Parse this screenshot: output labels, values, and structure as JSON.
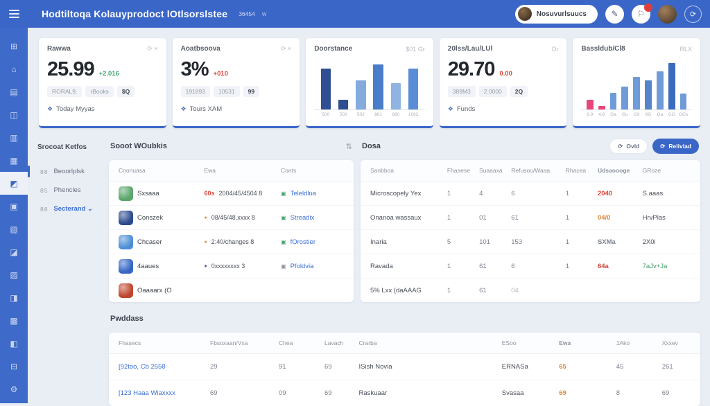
{
  "colors": {
    "accent": "#3a66c8",
    "red": "#d9453a",
    "orange": "#e08a3c",
    "green": "#43a36b",
    "purple": "#6a3f9e",
    "gray": "#8a909c",
    "link": "#3b6fd4",
    "muted": "#b3b9c3",
    "pink": "#e8457c"
  },
  "icons": {
    "refresh": "⟳",
    "pen": "✎",
    "flag": "⚐",
    "ring": "⟳",
    "sort": "⇅",
    "caret": "⌄",
    "foot": "❖",
    "btn_light": "⟳",
    "btn_primary": "⟳"
  },
  "topbar": {
    "title": "Hodtiltoqa Kolauyprodoct lOtlsorslstee",
    "meta": "36454",
    "meta2": "w",
    "user": "Nosuvurlsuucs"
  },
  "sidebar_icons": [
    {
      "id": "apps",
      "glyph": "⊞"
    },
    {
      "id": "home",
      "glyph": "⌂"
    },
    {
      "id": "layers",
      "glyph": "▤"
    },
    {
      "id": "users",
      "glyph": "◫"
    },
    {
      "id": "orders",
      "glyph": "▥"
    },
    {
      "id": "mail",
      "glyph": "▦"
    },
    {
      "id": "products",
      "glyph": "◩",
      "active": true
    },
    {
      "id": "analytics",
      "glyph": "▣"
    },
    {
      "id": "wallet",
      "glyph": "▧"
    },
    {
      "id": "network",
      "glyph": "◪"
    },
    {
      "id": "storage",
      "glyph": "▨"
    },
    {
      "id": "calendar",
      "glyph": "◨"
    },
    {
      "id": "reports",
      "glyph": "▩"
    },
    {
      "id": "tools",
      "glyph": "◧"
    },
    {
      "id": "archive",
      "glyph": "⊟"
    },
    {
      "id": "settings",
      "glyph": "⚙"
    }
  ],
  "submenu": {
    "header": "Srocoat Ketfos",
    "items": [
      {
        "icon": "grid",
        "code": "88",
        "label": "Beoorlplsk",
        "active": true
      },
      {
        "icon": "list",
        "code": "85",
        "label": "Phencles"
      },
      {
        "icon": "board",
        "code": "88",
        "label": "Secterand ⌄",
        "blue": true
      }
    ]
  },
  "stat_cards": {
    "card1": {
      "title": "Rawwa",
      "meta": "⟳ ×",
      "value": "25.99",
      "delta": "+2.016",
      "pills": [
        "RORAL9.",
        "rBooks",
        "$Q"
      ],
      "footer": "Today Myyas"
    },
    "card2": {
      "title": "Aoatbsoova",
      "meta": "⟳ ×",
      "value": "3%",
      "delta": "+010",
      "pills": [
        "191893",
        "10531",
        "99"
      ],
      "footer": "Tours XAM"
    },
    "card3": {
      "title": "Doorstance",
      "meta": "$01 Gr"
    },
    "card4": {
      "title": "20lss/Lau/LUl",
      "meta": "Dr",
      "value": "29.70",
      "delta": "0.00",
      "pills": [
        "389M3",
        "2.0000",
        "2Q"
      ],
      "footer": "Funds"
    },
    "card5": {
      "title": "Bassldub/Cl8",
      "meta": "RLX"
    }
  },
  "chart_data": [
    {
      "type": "bar",
      "title": "Doorstance",
      "categories": [
        "500",
        "500",
        "502",
        "861",
        "880",
        "1062"
      ],
      "values": [
        78,
        18,
        55,
        85,
        50,
        78
      ],
      "colors": [
        "#2e4f92",
        "#2e4f92",
        "#85abdd",
        "#4a7cc9",
        "#8fb4e2",
        "#5b8dd6"
      ],
      "xlabel": "",
      "ylabel": "",
      "ylim": [
        0,
        100
      ],
      "grid": false,
      "legend": false
    },
    {
      "type": "bar",
      "title": "Bassldub/Cl8",
      "categories": [
        "9.9",
        "4.8",
        "Ga",
        "Gu",
        "G9",
        "6G",
        "Ga",
        "GG",
        "GGs"
      ],
      "values": [
        18,
        7,
        32,
        44,
        62,
        55,
        72,
        88,
        30
      ],
      "colors": [
        "#e8457c",
        "#e8457c",
        "#6f9bd8",
        "#6f9bd8",
        "#6f9bd8",
        "#5584c8",
        "#6f9bd8",
        "#3a6bbd",
        "#6f9bd8"
      ],
      "xlabel": "",
      "ylabel": "",
      "ylim": [
        0,
        100
      ],
      "grid": false,
      "legend": false
    }
  ],
  "left_table": {
    "title": "Sooot WOubkis",
    "columns": [
      "Cnonuasa",
      "Ewa",
      "Conts"
    ],
    "rows": [
      {
        "icon": "#5aa56b",
        "name": "Sxsaaa",
        "prefix": "60s",
        "date": "2004/45/4504 8",
        "link": "Teleldlua",
        "link_icon": "green"
      },
      {
        "icon": "#2b4a8c",
        "name": "Conszek",
        "dot": "orange",
        "date": "08/45/48.xxxx 8",
        "link": "Streadix",
        "link_icon": "green"
      },
      {
        "icon": "#4d8fd6",
        "name": "Chcaser",
        "dot": "orange",
        "date": "2:40/changes 8",
        "link": "fOrostier",
        "link_icon": "green"
      },
      {
        "icon": "#3566c4",
        "name": "4aaues",
        "dot": "purple",
        "date": "0xxxxxxxx 3",
        "link": "Pfoldvia",
        "link_icon": "gray"
      },
      {
        "icon": "#c0452e",
        "name": "Oaaaarx (O",
        "date": "",
        "link": ""
      }
    ]
  },
  "right_table": {
    "title": "Dosa",
    "buttons": {
      "light": "Ovld",
      "primary": "Relivlad"
    },
    "columns": [
      "Sanbboa",
      "Fhaaese",
      "Suaaaxa",
      "Refusou/Waaa",
      "Rhacea",
      "Udsaoooge",
      "GRoze"
    ],
    "rows": [
      {
        "cells": [
          "Microscopely Yex",
          "1",
          "4",
          "6",
          "1",
          {
            "t": "2040",
            "c": "red"
          },
          "S.aaas"
        ]
      },
      {
        "cells": [
          "Onanoa wassaux",
          "1",
          "01",
          "61",
          "1",
          {
            "t": "04/0",
            "c": "orange"
          },
          "HrvPlas"
        ]
      },
      {
        "cells": [
          "Inaria",
          "5",
          "101",
          "153",
          "1",
          {
            "t": "SXMa",
            "c": ""
          },
          "2X0i"
        ]
      },
      {
        "cells": [
          "Ravada",
          "1",
          "61",
          "6",
          "1",
          {
            "t": "64a",
            "c": "red"
          },
          {
            "t": "7aJv+Ja",
            "c": "green"
          }
        ]
      },
      {
        "cells": [
          "5% Lxx (daAAAG",
          "1",
          "61",
          {
            "t": "04",
            "c": "muted"
          },
          "",
          "",
          ""
        ]
      }
    ]
  },
  "bottom_table": {
    "title": "Pwddass",
    "columns": [
      "Fhasecs",
      "Fbsoxaan/Vxa",
      "Chea",
      "Lavach",
      "Crarba",
      "ESoo",
      "Ewa",
      "1Ako",
      "Xxxev"
    ],
    "rows": [
      {
        "cells": [
          {
            "t": "[92too, Cb 2558",
            "c": "link"
          },
          "29",
          "91",
          "69",
          "ISish Novia",
          "ERNASa",
          {
            "t": "65",
            "c": "orange"
          },
          "45",
          "261"
        ]
      },
      {
        "cells": [
          {
            "t": "[123 Haaa Wiaxxxx",
            "c": "link"
          },
          "69",
          "09",
          "69",
          "Raskuaar",
          "Svasaa",
          {
            "t": "69",
            "c": "orange"
          },
          "8",
          "69"
        ]
      }
    ]
  }
}
